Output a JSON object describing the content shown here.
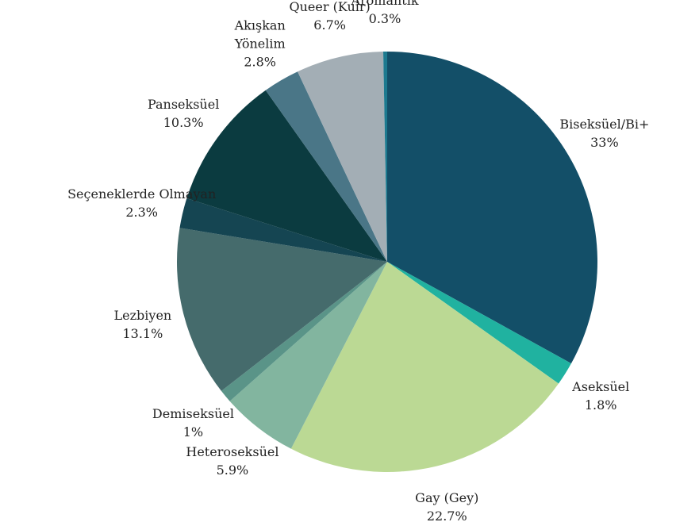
{
  "chart_data": {
    "type": "pie",
    "categories": [
      "Biseksüel/Bi+",
      "Aseksüel",
      "Gay (Gey)",
      "Heteroseksüel",
      "Demiseksüel",
      "Lezbiyen",
      "Seçeneklerde Olmayan",
      "Panseksüel",
      "Akışkan\nYönelim",
      "Queer (Kuir)",
      "Aromantik"
    ],
    "values": [
      33,
      1.8,
      22.7,
      5.9,
      1,
      13.1,
      2.3,
      10.3,
      2.8,
      6.7,
      0.3
    ],
    "value_labels": [
      "33%",
      "1.8%",
      "22.7%",
      "5.9%",
      "1%",
      "13.1%",
      "2.3%",
      "10.3%",
      "2.8%",
      "6.7%",
      "0.3%"
    ],
    "colors": [
      "#134f68",
      "#20b2a0",
      "#bbd994",
      "#82b59f",
      "#5a9488",
      "#456b6c",
      "#154552",
      "#0b3b40",
      "#4a7687",
      "#a3aeb5",
      "#1d7a8f"
    ]
  }
}
